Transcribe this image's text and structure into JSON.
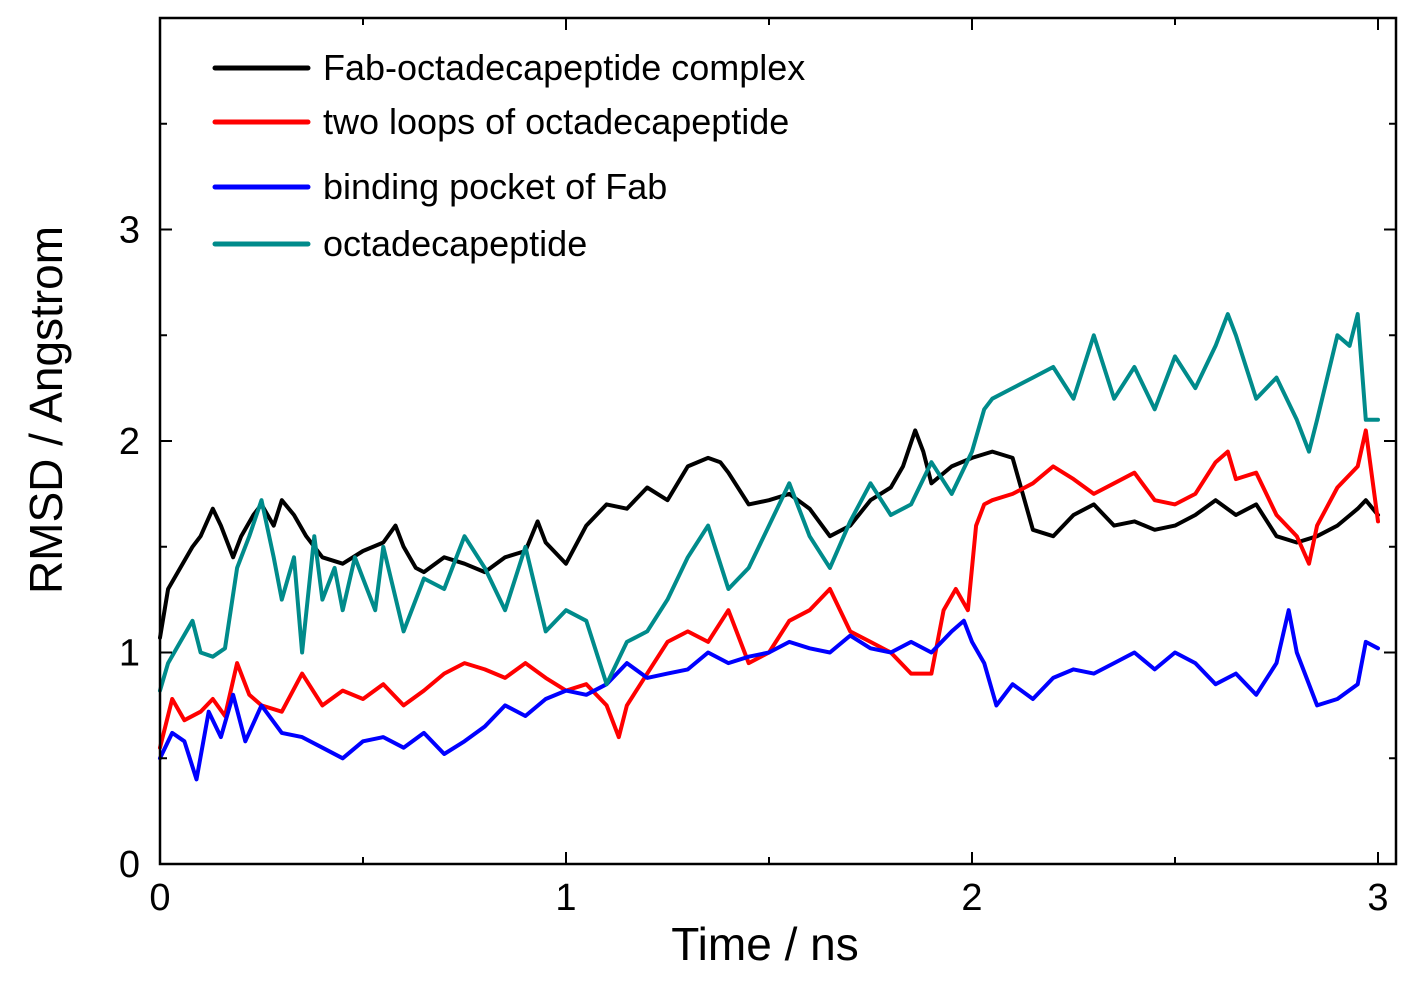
{
  "chart_data": {
    "type": "line",
    "title": "",
    "xlabel": "Time / ns",
    "ylabel": "RMSD / Angstrom",
    "xlim": [
      0,
      3
    ],
    "ylim": [
      0,
      4
    ],
    "xticks": [
      0,
      1,
      2,
      3
    ],
    "xtick_labels": [
      "0",
      "1",
      "2",
      "3"
    ],
    "yticks": [
      0,
      1,
      2,
      3
    ],
    "ytick_labels": [
      "0",
      "1",
      "2",
      "3"
    ],
    "grid": false,
    "legend_position": "top-left",
    "series": [
      {
        "name": "Fab-octadecapeptide complex",
        "color": "#000000",
        "x": [
          0,
          0.02,
          0.05,
          0.08,
          0.1,
          0.13,
          0.15,
          0.18,
          0.2,
          0.23,
          0.25,
          0.28,
          0.3,
          0.33,
          0.36,
          0.4,
          0.45,
          0.5,
          0.55,
          0.58,
          0.6,
          0.63,
          0.65,
          0.7,
          0.75,
          0.8,
          0.85,
          0.9,
          0.93,
          0.95,
          1.0,
          1.05,
          1.1,
          1.15,
          1.2,
          1.25,
          1.3,
          1.35,
          1.38,
          1.4,
          1.45,
          1.5,
          1.55,
          1.6,
          1.65,
          1.7,
          1.75,
          1.8,
          1.83,
          1.86,
          1.88,
          1.9,
          1.95,
          2.0,
          2.05,
          2.1,
          2.15,
          2.2,
          2.25,
          2.3,
          2.35,
          2.4,
          2.45,
          2.5,
          2.55,
          2.6,
          2.65,
          2.7,
          2.75,
          2.8,
          2.85,
          2.9,
          2.95,
          2.97,
          3.0
        ],
        "y": [
          1.07,
          1.3,
          1.4,
          1.5,
          1.55,
          1.68,
          1.6,
          1.45,
          1.55,
          1.65,
          1.7,
          1.6,
          1.72,
          1.65,
          1.55,
          1.45,
          1.42,
          1.48,
          1.52,
          1.6,
          1.5,
          1.4,
          1.38,
          1.45,
          1.42,
          1.38,
          1.45,
          1.48,
          1.62,
          1.52,
          1.42,
          1.6,
          1.7,
          1.68,
          1.78,
          1.72,
          1.88,
          1.92,
          1.9,
          1.85,
          1.7,
          1.72,
          1.75,
          1.68,
          1.55,
          1.6,
          1.72,
          1.78,
          1.88,
          2.05,
          1.95,
          1.8,
          1.88,
          1.92,
          1.95,
          1.92,
          1.58,
          1.55,
          1.65,
          1.7,
          1.6,
          1.62,
          1.58,
          1.6,
          1.65,
          1.72,
          1.65,
          1.7,
          1.55,
          1.52,
          1.55,
          1.6,
          1.68,
          1.72,
          1.65
        ]
      },
      {
        "name": "two loops of octadecapeptide",
        "color": "#ff0000",
        "x": [
          0,
          0.03,
          0.06,
          0.1,
          0.13,
          0.16,
          0.19,
          0.22,
          0.25,
          0.3,
          0.35,
          0.4,
          0.45,
          0.5,
          0.55,
          0.6,
          0.65,
          0.7,
          0.75,
          0.8,
          0.85,
          0.9,
          0.95,
          1.0,
          1.05,
          1.1,
          1.13,
          1.15,
          1.2,
          1.25,
          1.3,
          1.35,
          1.4,
          1.45,
          1.5,
          1.55,
          1.6,
          1.65,
          1.7,
          1.75,
          1.8,
          1.85,
          1.9,
          1.93,
          1.96,
          1.99,
          2.01,
          2.03,
          2.05,
          2.1,
          2.15,
          2.2,
          2.25,
          2.3,
          2.35,
          2.4,
          2.45,
          2.5,
          2.55,
          2.6,
          2.63,
          2.65,
          2.7,
          2.75,
          2.8,
          2.83,
          2.85,
          2.9,
          2.95,
          2.97,
          3.0
        ],
        "y": [
          0.55,
          0.78,
          0.68,
          0.72,
          0.78,
          0.7,
          0.95,
          0.8,
          0.75,
          0.72,
          0.9,
          0.75,
          0.82,
          0.78,
          0.85,
          0.75,
          0.82,
          0.9,
          0.95,
          0.92,
          0.88,
          0.95,
          0.88,
          0.82,
          0.85,
          0.75,
          0.6,
          0.75,
          0.9,
          1.05,
          1.1,
          1.05,
          1.2,
          0.95,
          1.0,
          1.15,
          1.2,
          1.3,
          1.1,
          1.05,
          1.0,
          0.9,
          0.9,
          1.2,
          1.3,
          1.2,
          1.6,
          1.7,
          1.72,
          1.75,
          1.8,
          1.88,
          1.82,
          1.75,
          1.8,
          1.85,
          1.72,
          1.7,
          1.75,
          1.9,
          1.95,
          1.82,
          1.85,
          1.65,
          1.55,
          1.42,
          1.6,
          1.78,
          1.88,
          2.05,
          1.62
        ]
      },
      {
        "name": "binding pocket of Fab",
        "color": "#0000ff",
        "x": [
          0,
          0.03,
          0.06,
          0.09,
          0.12,
          0.15,
          0.18,
          0.21,
          0.25,
          0.3,
          0.35,
          0.4,
          0.45,
          0.5,
          0.55,
          0.6,
          0.65,
          0.7,
          0.75,
          0.8,
          0.85,
          0.9,
          0.95,
          1.0,
          1.05,
          1.1,
          1.15,
          1.2,
          1.25,
          1.3,
          1.35,
          1.4,
          1.45,
          1.5,
          1.55,
          1.6,
          1.65,
          1.7,
          1.75,
          1.8,
          1.85,
          1.9,
          1.95,
          1.98,
          2.0,
          2.03,
          2.06,
          2.1,
          2.15,
          2.2,
          2.25,
          2.3,
          2.35,
          2.4,
          2.45,
          2.5,
          2.55,
          2.6,
          2.65,
          2.7,
          2.75,
          2.78,
          2.8,
          2.85,
          2.9,
          2.95,
          2.97,
          3.0
        ],
        "y": [
          0.5,
          0.62,
          0.58,
          0.4,
          0.72,
          0.6,
          0.8,
          0.58,
          0.75,
          0.62,
          0.6,
          0.55,
          0.5,
          0.58,
          0.6,
          0.55,
          0.62,
          0.52,
          0.58,
          0.65,
          0.75,
          0.7,
          0.78,
          0.82,
          0.8,
          0.85,
          0.95,
          0.88,
          0.9,
          0.92,
          1.0,
          0.95,
          0.98,
          1.0,
          1.05,
          1.02,
          1.0,
          1.08,
          1.02,
          1.0,
          1.05,
          1.0,
          1.1,
          1.15,
          1.05,
          0.95,
          0.75,
          0.85,
          0.78,
          0.88,
          0.92,
          0.9,
          0.95,
          1.0,
          0.92,
          1.0,
          0.95,
          0.85,
          0.9,
          0.8,
          0.95,
          1.2,
          1.0,
          0.75,
          0.78,
          0.85,
          1.05,
          1.02
        ]
      },
      {
        "name": "octadecapeptide",
        "color": "#008b8b",
        "x": [
          0,
          0.02,
          0.05,
          0.08,
          0.1,
          0.13,
          0.16,
          0.19,
          0.22,
          0.25,
          0.28,
          0.3,
          0.33,
          0.35,
          0.38,
          0.4,
          0.43,
          0.45,
          0.48,
          0.5,
          0.53,
          0.55,
          0.6,
          0.65,
          0.7,
          0.75,
          0.8,
          0.85,
          0.9,
          0.95,
          1.0,
          1.05,
          1.1,
          1.15,
          1.2,
          1.25,
          1.3,
          1.35,
          1.4,
          1.45,
          1.5,
          1.55,
          1.6,
          1.65,
          1.7,
          1.75,
          1.8,
          1.85,
          1.9,
          1.95,
          2.0,
          2.03,
          2.05,
          2.1,
          2.15,
          2.2,
          2.25,
          2.3,
          2.35,
          2.4,
          2.45,
          2.5,
          2.55,
          2.6,
          2.63,
          2.65,
          2.7,
          2.75,
          2.8,
          2.83,
          2.85,
          2.9,
          2.93,
          2.95,
          2.97,
          3.0
        ],
        "y": [
          0.82,
          0.95,
          1.05,
          1.15,
          1.0,
          0.98,
          1.02,
          1.4,
          1.55,
          1.72,
          1.45,
          1.25,
          1.45,
          1.0,
          1.55,
          1.25,
          1.4,
          1.2,
          1.45,
          1.35,
          1.2,
          1.5,
          1.1,
          1.35,
          1.3,
          1.55,
          1.4,
          1.2,
          1.5,
          1.1,
          1.2,
          1.15,
          0.85,
          1.05,
          1.1,
          1.25,
          1.45,
          1.6,
          1.3,
          1.4,
          1.6,
          1.8,
          1.55,
          1.4,
          1.62,
          1.8,
          1.65,
          1.7,
          1.9,
          1.75,
          1.95,
          2.15,
          2.2,
          2.25,
          2.3,
          2.35,
          2.2,
          2.5,
          2.2,
          2.35,
          2.15,
          2.4,
          2.25,
          2.45,
          2.6,
          2.5,
          2.2,
          2.3,
          2.1,
          1.95,
          2.1,
          2.5,
          2.45,
          2.6,
          2.1,
          2.1
        ]
      }
    ]
  }
}
